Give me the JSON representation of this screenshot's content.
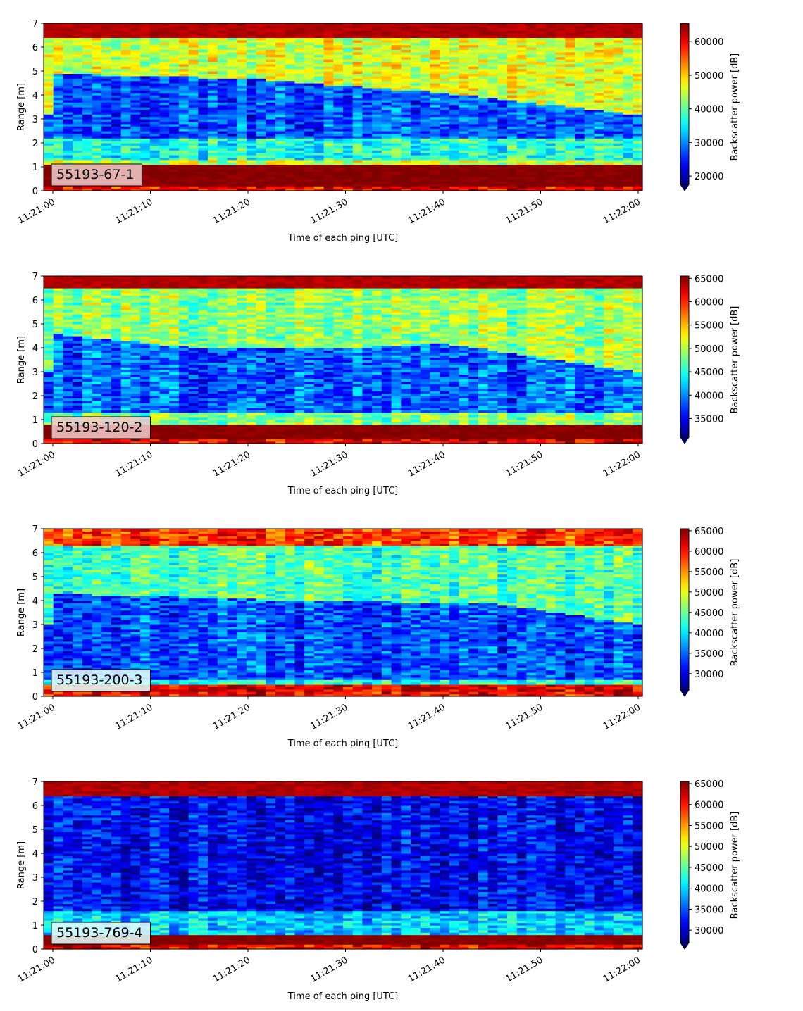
{
  "chart_data": [
    {
      "type": "heatmap",
      "label": "55193-67-1",
      "ylabel": "Range [m]",
      "xlabel": "Time of each ping [UTC]",
      "ylim": [
        0,
        7
      ],
      "yticks": [
        0,
        1,
        2,
        3,
        4,
        5,
        6,
        7
      ],
      "xticks": [
        "11:21:00",
        "11:21:10",
        "11:21:20",
        "11:21:30",
        "11:21:40",
        "11:21:50",
        "11:22:00"
      ],
      "colorbar": {
        "label": "Backscatter power [dB]",
        "range": [
          17500,
          65500
        ],
        "ticks": [
          20000,
          30000,
          40000,
          50000,
          60000
        ],
        "colormap": "jet",
        "extend": "min"
      },
      "bands": [
        {
          "y": [
            0,
            0.25
          ],
          "level": 0.88
        },
        {
          "y": [
            0.25,
            1.15
          ],
          "level": 1.0
        },
        {
          "y": [
            1.15,
            1.35
          ],
          "level": 0.56
        },
        {
          "y": [
            1.35,
            2.2
          ],
          "level": 0.4
        },
        {
          "y": [
            2.2,
            "boundary"
          ],
          "level": 0.2
        },
        {
          "y": [
            "boundary",
            6.4
          ],
          "level": 0.58
        },
        {
          "y": [
            6.4,
            7.0
          ],
          "level": 0.95
        }
      ],
      "boundary_m": [
        [
          0,
          4.9
        ],
        [
          20,
          4.7
        ],
        [
          33,
          4.3
        ],
        [
          40,
          4.1
        ],
        [
          60,
          3.2
        ]
      ]
    },
    {
      "type": "heatmap",
      "label": "55193-120-2",
      "ylabel": "Range [m]",
      "xlabel": "Time of each ping [UTC]",
      "ylim": [
        0,
        7
      ],
      "yticks": [
        0,
        1,
        2,
        3,
        4,
        5,
        6,
        7
      ],
      "xticks": [
        "11:21:00",
        "11:21:10",
        "11:21:20",
        "11:21:30",
        "11:21:40",
        "11:21:50",
        "11:22:00"
      ],
      "colorbar": {
        "label": "Backscatter power [dB]",
        "range": [
          31000,
          65500
        ],
        "ticks": [
          35000,
          40000,
          45000,
          50000,
          55000,
          60000,
          65000
        ],
        "colormap": "jet",
        "extend": "min"
      },
      "bands": [
        {
          "y": [
            0,
            0.25
          ],
          "level": 0.88
        },
        {
          "y": [
            0.25,
            0.85
          ],
          "level": 1.0
        },
        {
          "y": [
            0.85,
            1.3
          ],
          "level": 0.5
        },
        {
          "y": [
            1.3,
            "boundary"
          ],
          "level": 0.22
        },
        {
          "y": [
            "boundary",
            6.5
          ],
          "level": 0.52
        },
        {
          "y": [
            6.5,
            7.0
          ],
          "level": 0.95
        }
      ],
      "boundary_m": [
        [
          0,
          4.6
        ],
        [
          15,
          4.0
        ],
        [
          30,
          4.0
        ],
        [
          40,
          4.2
        ],
        [
          60,
          3.0
        ]
      ]
    },
    {
      "type": "heatmap",
      "label": "55193-200-3",
      "ylabel": "Range [m]",
      "xlabel": "Time of each ping [UTC]",
      "ylim": [
        0,
        7
      ],
      "yticks": [
        0,
        1,
        2,
        3,
        4,
        5,
        6,
        7
      ],
      "xticks": [
        "11:21:00",
        "11:21:10",
        "11:21:20",
        "11:21:30",
        "11:21:40",
        "11:21:50",
        "11:22:00"
      ],
      "colorbar": {
        "label": "Backscatter power [dB]",
        "range": [
          26000,
          65500
        ],
        "ticks": [
          30000,
          35000,
          40000,
          45000,
          50000,
          55000,
          60000,
          65000
        ],
        "colormap": "jet",
        "extend": "min"
      },
      "bands": [
        {
          "y": [
            0,
            0.25
          ],
          "level": 0.88
        },
        {
          "y": [
            0.25,
            0.45
          ],
          "level": 0.9
        },
        {
          "y": [
            0.45,
            0.7
          ],
          "level": 0.4
        },
        {
          "y": [
            0.7,
            "boundary"
          ],
          "level": 0.2
        },
        {
          "y": [
            "boundary",
            6.3
          ],
          "level": 0.45
        },
        {
          "y": [
            6.3,
            7.0
          ],
          "level": 0.82
        }
      ],
      "boundary_m": [
        [
          0,
          4.3
        ],
        [
          25,
          4.0
        ],
        [
          45,
          3.9
        ],
        [
          60,
          3.0
        ]
      ]
    },
    {
      "type": "heatmap",
      "label": "55193-769-4",
      "ylabel": "Range [m]",
      "xlabel": "Time of each ping [UTC]",
      "ylim": [
        0,
        7
      ],
      "yticks": [
        0,
        1,
        2,
        3,
        4,
        5,
        6,
        7
      ],
      "xticks": [
        "11:21:00",
        "11:21:10",
        "11:21:20",
        "11:21:30",
        "11:21:40",
        "11:21:50",
        "11:22:00"
      ],
      "colorbar": {
        "label": "Backscatter power [dB]",
        "range": [
          27000,
          65500
        ],
        "ticks": [
          30000,
          35000,
          40000,
          45000,
          50000,
          55000,
          60000,
          65000
        ],
        "colormap": "jet",
        "extend": "min"
      },
      "bands": [
        {
          "y": [
            0,
            0.25
          ],
          "level": 0.88
        },
        {
          "y": [
            0.25,
            0.65
          ],
          "level": 1.0
        },
        {
          "y": [
            0.65,
            1.6
          ],
          "level": 0.33
        },
        {
          "y": [
            1.6,
            6.4
          ],
          "level": 0.12
        },
        {
          "y": [
            6.4,
            7.0
          ],
          "level": 0.95
        }
      ],
      "boundary_m": []
    }
  ]
}
